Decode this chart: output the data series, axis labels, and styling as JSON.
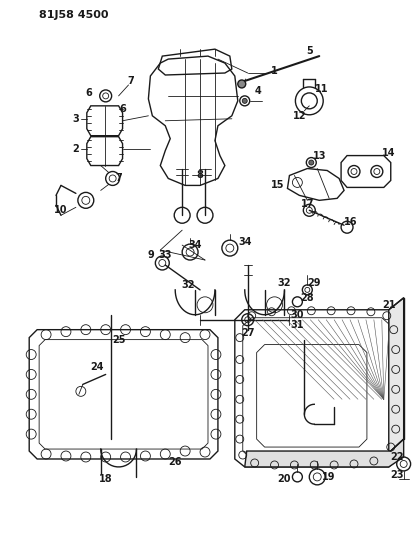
{
  "title": "81J58 4500",
  "bg_color": "#ffffff",
  "line_color": "#1a1a1a",
  "fig_width": 4.13,
  "fig_height": 5.33,
  "dpi": 100
}
